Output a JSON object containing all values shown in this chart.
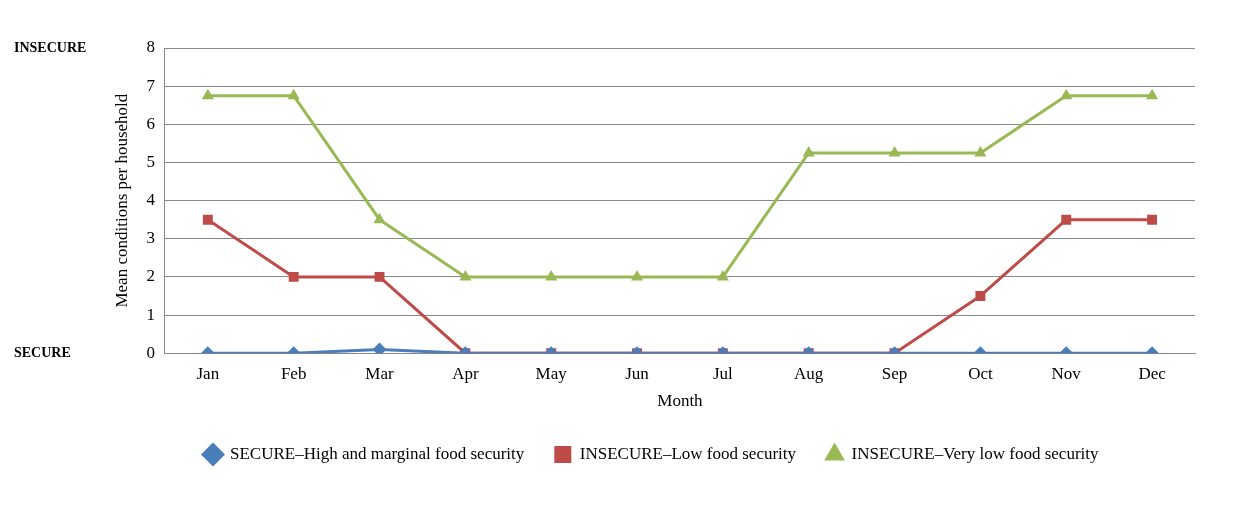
{
  "chart_data": {
    "type": "line",
    "xlabel": "Month",
    "ylabel": "Mean conditions per household",
    "categories": [
      "Jan",
      "Feb",
      "Mar",
      "Apr",
      "May",
      "Jun",
      "Jul",
      "Aug",
      "Sep",
      "Oct",
      "Nov",
      "Dec"
    ],
    "series": [
      {
        "name": "SECURE–High and marginal food security",
        "color": "#4a7ebb",
        "marker": "diamond",
        "values": [
          0,
          0,
          0.1,
          0,
          0,
          0,
          0,
          0,
          0,
          0,
          0,
          0
        ]
      },
      {
        "name": "INSECURE–Low food security",
        "color": "#be4b48",
        "marker": "square",
        "values": [
          3.5,
          2,
          2,
          0,
          0,
          0,
          0,
          0,
          0,
          1.5,
          3.5,
          3.5
        ]
      },
      {
        "name": "INSECURE–Very low food security",
        "color": "#98b954",
        "marker": "triangle",
        "values": [
          6.75,
          6.75,
          3.5,
          2,
          2,
          2,
          2,
          5.25,
          5.25,
          5.25,
          6.75,
          6.75
        ]
      }
    ],
    "ylim": [
      0,
      8
    ],
    "yticks": [
      0,
      1,
      2,
      3,
      4,
      5,
      6,
      7,
      8
    ],
    "grid": "y",
    "legend": "bottom",
    "line_style": "solid",
    "annotations": [
      "INSECURE",
      "SECURE"
    ]
  }
}
